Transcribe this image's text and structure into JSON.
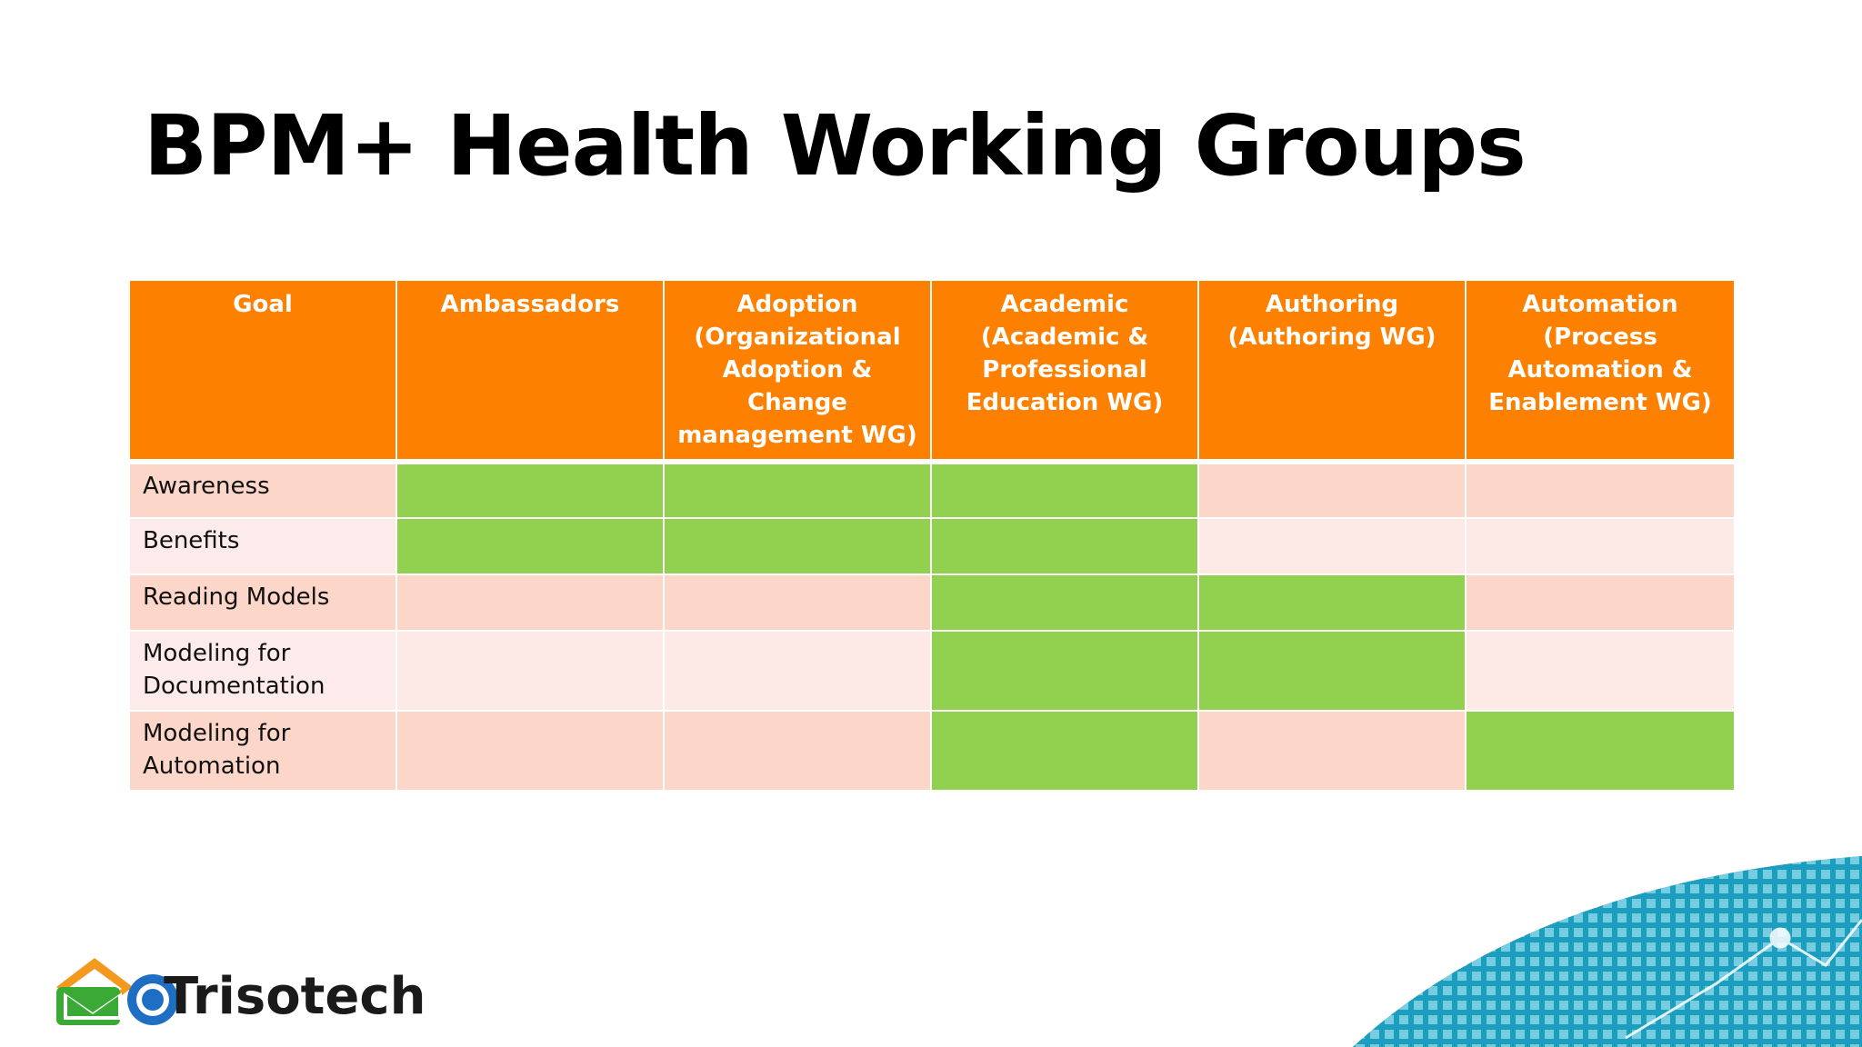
{
  "slide": {
    "title": "BPM+ Health Working Groups"
  },
  "table": {
    "headers": [
      "Goal",
      "Ambassadors",
      "Adoption (Organizational Adoption & Change management WG)",
      "Academic (Academic & Professional Education WG)",
      "Authoring (Authoring WG)",
      "Automation (Process Automation & Enablement WG)"
    ],
    "rows": [
      {
        "goal": "Awareness",
        "marks": [
          true,
          true,
          true,
          false,
          false
        ]
      },
      {
        "goal": "Benefits",
        "marks": [
          true,
          true,
          true,
          false,
          false
        ]
      },
      {
        "goal": "Reading Models",
        "marks": [
          false,
          false,
          true,
          true,
          false
        ]
      },
      {
        "goal": "Modeling for Documentation",
        "marks": [
          false,
          false,
          true,
          true,
          false
        ]
      },
      {
        "goal": "Modeling for Automation",
        "marks": [
          false,
          false,
          true,
          false,
          true
        ]
      }
    ]
  },
  "colors": {
    "header": "#fe8000",
    "marked": "#92d050",
    "row_light": "#fdeae6",
    "row_dark": "#fdd6ca"
  },
  "logo": {
    "text": "Trisotech"
  }
}
